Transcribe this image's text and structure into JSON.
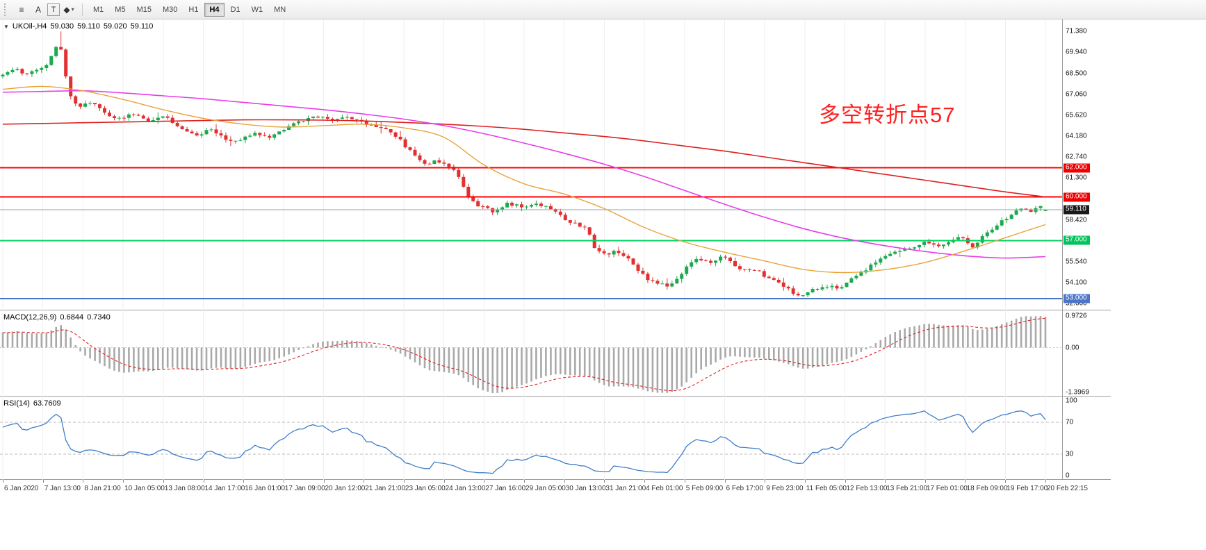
{
  "toolbar": {
    "buttons": [
      {
        "name": "chart-lines-icon",
        "glyph": "≡",
        "boxed": false
      },
      {
        "name": "text-annotation-icon",
        "glyph": "A",
        "boxed": false
      },
      {
        "name": "text-box-icon",
        "glyph": "T",
        "boxed": true
      },
      {
        "name": "draw-shapes-icon",
        "glyph": "◆",
        "caret": "▾",
        "boxed": false
      }
    ],
    "timeframes": [
      "M1",
      "M5",
      "M15",
      "M30",
      "H1",
      "H4",
      "D1",
      "W1",
      "MN"
    ],
    "active_timeframe": "H4"
  },
  "chart": {
    "title": {
      "symbol": "UKOil-,H4",
      "open": "59.030",
      "high": "59.110",
      "low": "59.020",
      "close": "59.110"
    },
    "annotation": {
      "text": "多空转折点57",
      "color": "#ff2020"
    },
    "colors": {
      "up": "#1fa94e",
      "down": "#e23030",
      "ma_fast_orange": "#e8a33c",
      "ma_mid_magenta": "#e83ce8",
      "ma_slow_red": "#dd2020",
      "bid_line": "#8ea0bd",
      "grid": "#efefef"
    },
    "price_axis": {
      "max": 72.2,
      "min": 52.2,
      "labels": [
        {
          "text": "71.380",
          "value": 71.38
        },
        {
          "text": "69.940",
          "value": 69.94
        },
        {
          "text": "68.500",
          "value": 68.5
        },
        {
          "text": "67.060",
          "value": 67.06
        },
        {
          "text": "65.620",
          "value": 65.62
        },
        {
          "text": "64.180",
          "value": 64.18
        },
        {
          "text": "62.740",
          "value": 62.74
        },
        {
          "text": "61.300",
          "value": 61.3
        },
        {
          "text": "58.420",
          "value": 58.42
        },
        {
          "text": "55.540",
          "value": 55.54
        },
        {
          "text": "54.100",
          "value": 54.1
        },
        {
          "text": "52.660",
          "value": 52.66
        }
      ]
    },
    "badges": [
      {
        "text": "62.000",
        "value": 62.0,
        "bg": "#f00000"
      },
      {
        "text": "60.000",
        "value": 60.0,
        "bg": "#f00000"
      },
      {
        "text": "59.110",
        "value": 59.11,
        "bg": "#1a1a1a"
      },
      {
        "text": "57.000",
        "value": 57.0,
        "bg": "#00c45c"
      },
      {
        "text": "53.000",
        "value": 53.0,
        "bg": "#4a74c8"
      }
    ],
    "levels": [
      {
        "value": 62.0,
        "color": "#ff0000",
        "width": 2
      },
      {
        "value": 60.0,
        "color": "#ff0000",
        "width": 2
      },
      {
        "value": 57.0,
        "color": "#00d25f",
        "width": 2
      },
      {
        "value": 53.0,
        "color": "#4a74c8",
        "width": 2
      }
    ],
    "bid": {
      "value": 59.11,
      "label": "59.110"
    },
    "chart_data": {
      "type": "candlestick",
      "symbol": "UKOil-",
      "timeframe": "H4",
      "n_candles": 216,
      "last_ohlc": {
        "open": 59.03,
        "high": 59.11,
        "low": 59.02,
        "close": 59.11
      },
      "close_path": [
        [
          0.0,
          68.4
        ],
        [
          0.012,
          68.9
        ],
        [
          0.022,
          68.3
        ],
        [
          0.032,
          68.7
        ],
        [
          0.042,
          69.1
        ],
        [
          0.049,
          69.9
        ],
        [
          0.054,
          70.9
        ],
        [
          0.058,
          69.3
        ],
        [
          0.063,
          67.3
        ],
        [
          0.068,
          66.4
        ],
        [
          0.075,
          66.3
        ],
        [
          0.085,
          66.6
        ],
        [
          0.095,
          65.9
        ],
        [
          0.11,
          65.4
        ],
        [
          0.125,
          65.7
        ],
        [
          0.14,
          65.2
        ],
        [
          0.155,
          65.5
        ],
        [
          0.17,
          64.7
        ],
        [
          0.185,
          64.2
        ],
        [
          0.2,
          64.7
        ],
        [
          0.212,
          64.0
        ],
        [
          0.225,
          63.8
        ],
        [
          0.24,
          64.4
        ],
        [
          0.255,
          64.1
        ],
        [
          0.27,
          64.6
        ],
        [
          0.285,
          65.2
        ],
        [
          0.3,
          65.6
        ],
        [
          0.315,
          65.3
        ],
        [
          0.33,
          65.5
        ],
        [
          0.345,
          65.1
        ],
        [
          0.36,
          64.8
        ],
        [
          0.375,
          64.3
        ],
        [
          0.385,
          63.6
        ],
        [
          0.395,
          62.8
        ],
        [
          0.405,
          62.3
        ],
        [
          0.418,
          62.5
        ],
        [
          0.43,
          61.9
        ],
        [
          0.437,
          61.5
        ],
        [
          0.445,
          60.1
        ],
        [
          0.455,
          59.4
        ],
        [
          0.47,
          59.0
        ],
        [
          0.485,
          59.6
        ],
        [
          0.5,
          59.2
        ],
        [
          0.512,
          59.5
        ],
        [
          0.525,
          59.2
        ],
        [
          0.538,
          58.5
        ],
        [
          0.55,
          58.1
        ],
        [
          0.56,
          57.8
        ],
        [
          0.568,
          56.4
        ],
        [
          0.578,
          56.0
        ],
        [
          0.588,
          56.3
        ],
        [
          0.598,
          55.8
        ],
        [
          0.608,
          55.1
        ],
        [
          0.618,
          54.4
        ],
        [
          0.628,
          54.0
        ],
        [
          0.638,
          53.9
        ],
        [
          0.648,
          54.5
        ],
        [
          0.658,
          55.3
        ],
        [
          0.668,
          55.8
        ],
        [
          0.678,
          55.4
        ],
        [
          0.69,
          55.9
        ],
        [
          0.702,
          55.3
        ],
        [
          0.714,
          54.9
        ],
        [
          0.726,
          54.8
        ],
        [
          0.74,
          54.2
        ],
        [
          0.754,
          53.6
        ],
        [
          0.764,
          53.2
        ],
        [
          0.776,
          53.6
        ],
        [
          0.79,
          53.9
        ],
        [
          0.802,
          53.8
        ],
        [
          0.812,
          54.2
        ],
        [
          0.825,
          54.9
        ],
        [
          0.84,
          55.6
        ],
        [
          0.855,
          56.2
        ],
        [
          0.87,
          56.5
        ],
        [
          0.885,
          56.9
        ],
        [
          0.898,
          56.5
        ],
        [
          0.91,
          57.0
        ],
        [
          0.92,
          57.2
        ],
        [
          0.93,
          56.6
        ],
        [
          0.94,
          57.3
        ],
        [
          0.95,
          57.8
        ],
        [
          0.96,
          58.4
        ],
        [
          0.97,
          58.9
        ],
        [
          0.978,
          59.3
        ],
        [
          0.986,
          59.0
        ],
        [
          0.993,
          59.4
        ],
        [
          1.0,
          59.11
        ]
      ],
      "ma_fast": [
        67.4,
        67.6,
        67.3,
        66.7,
        66.0,
        65.4,
        65.0,
        64.8,
        64.9,
        65.0,
        64.75,
        64.1,
        62.2,
        60.9,
        60.2,
        59.2,
        57.9,
        56.9,
        56.2,
        55.6,
        55.0,
        54.8,
        55.0,
        55.5,
        56.3,
        57.2,
        58.1
      ],
      "ma_mid": [
        67.2,
        67.25,
        67.3,
        67.15,
        66.95,
        66.75,
        66.5,
        66.25,
        66.0,
        65.7,
        65.35,
        64.9,
        64.35,
        63.7,
        63.0,
        62.25,
        61.4,
        60.45,
        59.5,
        58.6,
        57.8,
        57.15,
        56.65,
        56.25,
        55.95,
        55.8,
        55.9
      ],
      "ma_slow": [
        65.0,
        65.05,
        65.1,
        65.15,
        65.2,
        65.25,
        65.3,
        65.3,
        65.28,
        65.22,
        65.12,
        65.0,
        64.85,
        64.65,
        64.4,
        64.15,
        63.85,
        63.5,
        63.15,
        62.75,
        62.35,
        61.95,
        61.55,
        61.15,
        60.75,
        60.35,
        60.0
      ]
    }
  },
  "macd": {
    "name": "MACD(12,26,9)",
    "value_main": "0.6844",
    "value_signal": "0.7340",
    "fast": 12,
    "slow": 26,
    "signal": 9,
    "vmax": 1.143,
    "vmin": -1.504,
    "hist_color": "#a9a9a9",
    "signal_color": "#e02020",
    "axis_labels": [
      {
        "text": "0.9726",
        "value": 0.9726
      },
      {
        "text": "0.00",
        "value": 0
      },
      {
        "text": "-1.3969",
        "value": -1.3969
      }
    ]
  },
  "rsi": {
    "name": "RSI(14)",
    "value": "63.7609",
    "period": 14,
    "color": "#3f7ec8",
    "levels": [
      70,
      30
    ],
    "axis_labels": [
      {
        "text": "100",
        "value": 100
      },
      {
        "text": "70",
        "value": 70
      },
      {
        "text": "30",
        "value": 30
      },
      {
        "text": "0",
        "value": 0
      }
    ]
  },
  "time_axis": {
    "labels": [
      "6 Jan 2020",
      "7 Jan 13:00",
      "8 Jan 21:00",
      "10 Jan 05:00",
      "13 Jan 08:00",
      "14 Jan 17:00",
      "16 Jan 01:00",
      "17 Jan 09:00",
      "20 Jan 12:00",
      "21 Jan 21:00",
      "23 Jan 05:00",
      "24 Jan 13:00",
      "27 Jan 16:00",
      "29 Jan 05:00",
      "30 Jan 13:00",
      "31 Jan 21:00",
      "4 Feb 01:00",
      "5 Feb 09:00",
      "6 Feb 17:00",
      "9 Feb 23:00",
      "11 Feb 05:00",
      "12 Feb 13:00",
      "13 Feb 21:00",
      "17 Feb 01:00",
      "18 Feb 09:00",
      "19 Feb 17:00",
      "20 Feb 22:15"
    ]
  }
}
